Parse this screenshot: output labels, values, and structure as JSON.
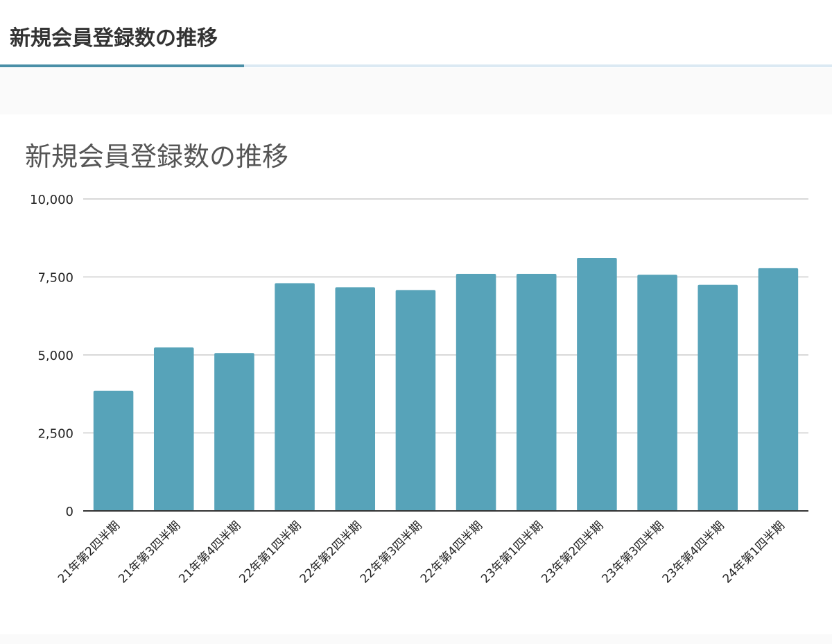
{
  "page": {
    "title": "新規会員登録数の推移"
  },
  "colors": {
    "bar": "#57a3b9",
    "accent": "#4a8fa7",
    "grid": "#cccccc",
    "axis": "#333333"
  },
  "chart_data": {
    "type": "bar",
    "title": "新規会員登録数の推移",
    "xlabel": "",
    "ylabel": "",
    "ylim": [
      0,
      10000
    ],
    "yticks": [
      0,
      2500,
      5000,
      7500,
      10000
    ],
    "ytick_labels": [
      "0",
      "2,500",
      "5,000",
      "7,500",
      "10,000"
    ],
    "grid": true,
    "categories": [
      "21年第2四半期",
      "21年第3四半期",
      "21年第4四半期",
      "22年第1四半期",
      "22年第2四半期",
      "22年第3四半期",
      "22年第4四半期",
      "23年第1四半期",
      "23年第2四半期",
      "23年第3四半期",
      "23年第4四半期",
      "24年第1四半期"
    ],
    "values": [
      3850,
      5240,
      5060,
      7300,
      7170,
      7080,
      7600,
      7600,
      8110,
      7570,
      7250,
      7780
    ]
  }
}
